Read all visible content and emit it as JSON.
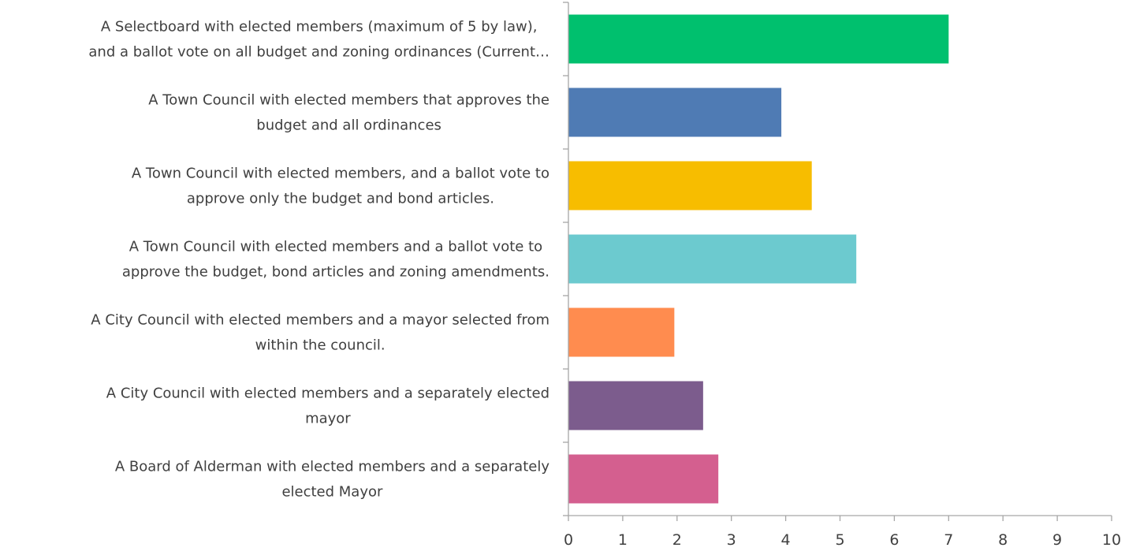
{
  "chart_data": {
    "type": "bar",
    "orientation": "horizontal",
    "categories": [
      [
        "A Selectboard with elected members (maximum of 5 by law),",
        "and a ballot vote on all budget and zoning ordinances (Current…"
      ],
      [
        "A Town Council with elected members that approves the",
        "budget and all ordinances"
      ],
      [
        "A Town Council with elected members, and a ballot vote to",
        "approve only the budget and bond articles."
      ],
      [
        "A Town Council with elected members and a ballot vote to",
        "approve the budget, bond articles and zoning amendments."
      ],
      [
        "A City Council with elected members and a mayor selected from",
        "within the council."
      ],
      [
        "A City Council with elected members and a separately elected",
        "mayor"
      ],
      [
        "A Board of Alderman with elected members and a separately",
        "elected Mayor"
      ]
    ],
    "values": [
      7.0,
      3.92,
      4.48,
      5.3,
      1.95,
      2.48,
      2.76
    ],
    "colors": [
      "#00c06e",
      "#4f7bb4",
      "#f7bd00",
      "#6ccacf",
      "#ff8c4f",
      "#7c5c8d",
      "#d45f8f"
    ],
    "xlim": [
      0,
      10
    ],
    "xticks": [
      "0",
      "1",
      "2",
      "3",
      "4",
      "5",
      "6",
      "7",
      "8",
      "9",
      "10"
    ],
    "grid": false,
    "legend": "none"
  }
}
